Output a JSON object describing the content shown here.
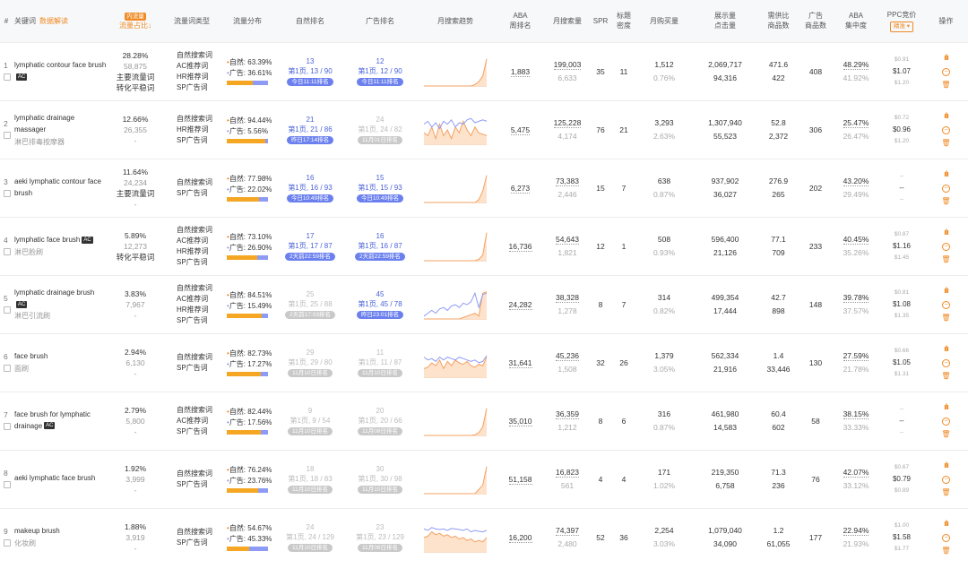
{
  "headers": {
    "idx": "#",
    "keyword": "关键词",
    "keyword_link": "数据解读",
    "share_badge": "内流量",
    "share": "流量占比↓",
    "type": "流量词类型",
    "flow": "流量分布",
    "natural_rank": "自然排名",
    "ad_rank": "广告排名",
    "trend": "月搜索趋势",
    "aba": [
      "ABA",
      "周排名"
    ],
    "monthly_search": "月搜索量",
    "spr": "SPR",
    "title_density": [
      "标题",
      "密度"
    ],
    "monthly_purchase": "月购买量",
    "impressions": [
      "展示量",
      "点击量"
    ],
    "supply_demand": [
      "需供比",
      "商品数"
    ],
    "ad_products": [
      "广告",
      "商品数"
    ],
    "aba_concentration": [
      "ABA",
      "集中度"
    ],
    "ppc": "PPC竞价",
    "ppc_select": "精准 ▾",
    "ops": "操作"
  },
  "rows": [
    {
      "idx": "1",
      "keyword": "lymphatic contour face brush",
      "ac": "AC",
      "sub": "",
      "share": "28.28%",
      "share_count": "58,875",
      "tags": [
        "主要流量词",
        "转化平稳词"
      ],
      "types": [
        "自然搜索词",
        "AC推荐词",
        "HR推荐词",
        "SP广告词"
      ],
      "nat_pct": "63.39%",
      "ad_pct": "36.61%",
      "nat_frac": 0.634,
      "nrank": {
        "style": "blue",
        "n": "13",
        "p": "第1页, 13 / 90",
        "pill": "今日11:11排名"
      },
      "arank": {
        "style": "blue",
        "n": "12",
        "p": "第1页, 12 / 90",
        "pill": "今日11:11排名"
      },
      "trend": {
        "type": "single",
        "a": [
          0,
          0,
          0,
          0,
          0,
          0,
          0,
          0,
          0,
          0,
          0,
          0,
          0,
          0.05,
          0.15,
          0.35,
          0.95
        ],
        "b": []
      },
      "aba": "1,883",
      "search": "199,003",
      "search_sub": "6,633",
      "spr": "35",
      "density": "11",
      "purchase": "1,512",
      "purchase_rate": "0.76%",
      "impressions": "2,069,717",
      "clicks": "94,316",
      "ratio": "471.6",
      "products": "422",
      "ad_products": "408",
      "aba_conc": "48.29%",
      "aba_conc_sub": "41.92%",
      "ppc_low": "$0.91",
      "ppc": "$1.07",
      "ppc_high": "$1.20"
    },
    {
      "idx": "2",
      "keyword": "lymphatic drainage massager",
      "ac": "",
      "sub": "淋巴排毒按摩器",
      "share": "12.66%",
      "share_count": "26,355",
      "tags": [
        "-"
      ],
      "types": [
        "自然搜索词",
        "HR推荐词",
        "SP广告词"
      ],
      "nat_pct": "94.44%",
      "ad_pct": "5.56%",
      "nat_frac": 0.944,
      "nrank": {
        "style": "blue",
        "n": "21",
        "p": "第1页, 21 / 86",
        "pill": "昨日17:14排名"
      },
      "arank": {
        "style": "grey",
        "n": "24",
        "p": "第1页, 24 / 82",
        "pill": "11月01日排名"
      },
      "trend": {
        "type": "double",
        "a": [
          0.4,
          0.3,
          0.6,
          0.2,
          0.7,
          0.3,
          0.5,
          0.2,
          0.6,
          0.4,
          0.8,
          0.5,
          0.3,
          0.6,
          0.4,
          0.35,
          0.3
        ],
        "b": [
          0.7,
          0.8,
          0.6,
          0.75,
          0.55,
          0.8,
          0.7,
          0.85,
          0.6,
          0.75,
          0.7,
          0.85,
          0.9,
          0.75,
          0.8,
          0.85,
          0.8
        ]
      },
      "aba": "5,475",
      "search": "125,228",
      "search_sub": "4,174",
      "spr": "76",
      "density": "21",
      "purchase": "3,293",
      "purchase_rate": "2.63%",
      "impressions": "1,307,940",
      "clicks": "55,523",
      "ratio": "52.8",
      "products": "2,372",
      "ad_products": "306",
      "aba_conc": "25.47%",
      "aba_conc_sub": "26.47%",
      "ppc_low": "$0.72",
      "ppc": "$0.96",
      "ppc_high": "$1.20"
    },
    {
      "idx": "3",
      "keyword": "aeki lymphatic contour face brush",
      "ac": "",
      "sub": "",
      "share": "11.64%",
      "share_count": "24,234",
      "tags": [
        "主要流量词",
        "-"
      ],
      "types": [
        "自然搜索词",
        "SP广告词"
      ],
      "nat_pct": "77.98%",
      "ad_pct": "22.02%",
      "nat_frac": 0.78,
      "nrank": {
        "style": "blue",
        "n": "16",
        "p": "第1页, 16 / 93",
        "pill": "今日10:49排名"
      },
      "arank": {
        "style": "blue",
        "n": "15",
        "p": "第1页, 15 / 93",
        "pill": "今日10:49排名"
      },
      "trend": {
        "type": "single",
        "a": [
          0,
          0,
          0,
          0,
          0,
          0,
          0,
          0,
          0,
          0,
          0,
          0,
          0,
          0,
          0.1,
          0.4,
          0.95
        ],
        "b": []
      },
      "aba": "6,273",
      "search": "73,383",
      "search_sub": "2,446",
      "spr": "15",
      "density": "7",
      "purchase": "638",
      "purchase_rate": "0.87%",
      "impressions": "937,902",
      "clicks": "36,027",
      "ratio": "276.9",
      "products": "265",
      "ad_products": "202",
      "aba_conc": "43.20%",
      "aba_conc_sub": "29.49%",
      "ppc_low": "--",
      "ppc": "--",
      "ppc_high": "--"
    },
    {
      "idx": "4",
      "keyword": "lymphatic face brush",
      "ac": "AC",
      "sub": "淋巴脸刷",
      "share": "5.89%",
      "share_count": "12,273",
      "tags": [
        "转化平稳词"
      ],
      "types": [
        "自然搜索词",
        "AC推荐词",
        "HR推荐词",
        "SP广告词"
      ],
      "nat_pct": "73.10%",
      "ad_pct": "26.90%",
      "nat_frac": 0.731,
      "nrank": {
        "style": "blue",
        "n": "17",
        "p": "第1页, 17 / 87",
        "pill": "2天前22:59排名"
      },
      "arank": {
        "style": "blue",
        "n": "16",
        "p": "第1页, 16 / 87",
        "pill": "2天前22:59排名"
      },
      "trend": {
        "type": "single",
        "a": [
          0,
          0,
          0,
          0,
          0,
          0,
          0,
          0,
          0,
          0,
          0,
          0,
          0,
          0,
          0.05,
          0.2,
          0.98
        ],
        "b": []
      },
      "aba": "16,736",
      "search": "54,643",
      "search_sub": "1,821",
      "spr": "12",
      "density": "1",
      "purchase": "508",
      "purchase_rate": "0.93%",
      "impressions": "596,400",
      "clicks": "21,126",
      "ratio": "77.1",
      "products": "709",
      "ad_products": "233",
      "aba_conc": "40.45%",
      "aba_conc_sub": "35.26%",
      "ppc_low": "$0.87",
      "ppc": "$1.16",
      "ppc_high": "$1.45"
    },
    {
      "idx": "5",
      "keyword": "lymphatic drainage brush",
      "ac": "AC",
      "sub": "淋巴引流刷",
      "share": "3.83%",
      "share_count": "7,967",
      "tags": [
        "-"
      ],
      "types": [
        "自然搜索词",
        "AC推荐词",
        "HR推荐词",
        "SP广告词"
      ],
      "nat_pct": "84.51%",
      "ad_pct": "15.49%",
      "nat_frac": 0.845,
      "nrank": {
        "style": "grey",
        "n": "25",
        "p": "第1页, 25 / 88",
        "pill": "2天前17:03排名"
      },
      "arank": {
        "style": "blue",
        "n": "45",
        "p": "第1页, 45 / 78",
        "pill": "昨日23:01排名"
      },
      "trend": {
        "type": "double",
        "a": [
          0,
          0,
          0,
          0,
          0,
          0,
          0,
          0,
          0,
          0,
          0.05,
          0.1,
          0.15,
          0.2,
          0.1,
          0.9,
          0.95
        ],
        "b": [
          0.1,
          0.2,
          0.3,
          0.2,
          0.35,
          0.4,
          0.3,
          0.45,
          0.5,
          0.4,
          0.55,
          0.5,
          0.6,
          0.9,
          0.4,
          0.85,
          0.9
        ]
      },
      "aba": "24,282",
      "search": "38,328",
      "search_sub": "1,278",
      "spr": "8",
      "density": "7",
      "purchase": "314",
      "purchase_rate": "0.82%",
      "impressions": "499,354",
      "clicks": "17,444",
      "ratio": "42.7",
      "products": "898",
      "ad_products": "148",
      "aba_conc": "39.78%",
      "aba_conc_sub": "37.57%",
      "ppc_low": "$0.81",
      "ppc": "$1.08",
      "ppc_high": "$1.35"
    },
    {
      "idx": "6",
      "keyword": "face brush",
      "ac": "",
      "sub": "面刷",
      "share": "2.94%",
      "share_count": "6,130",
      "tags": [
        "-"
      ],
      "types": [
        "自然搜索词",
        "SP广告词"
      ],
      "nat_pct": "82.73%",
      "ad_pct": "17.27%",
      "nat_frac": 0.827,
      "nrank": {
        "style": "grey",
        "n": "29",
        "p": "第1页, 29 / 80",
        "pill": "11月10日排名"
      },
      "arank": {
        "style": "grey",
        "n": "11",
        "p": "第1页, 11 / 87",
        "pill": "11月10日排名"
      },
      "trend": {
        "type": "double",
        "a": [
          0.3,
          0.35,
          0.5,
          0.4,
          0.6,
          0.3,
          0.55,
          0.4,
          0.6,
          0.5,
          0.45,
          0.55,
          0.4,
          0.35,
          0.45,
          0.4,
          0.7
        ],
        "b": [
          0.7,
          0.6,
          0.65,
          0.55,
          0.7,
          0.6,
          0.7,
          0.65,
          0.6,
          0.7,
          0.65,
          0.6,
          0.55,
          0.6,
          0.5,
          0.55,
          0.75
        ]
      },
      "aba": "31,641",
      "search": "45,236",
      "search_sub": "1,508",
      "spr": "32",
      "density": "26",
      "purchase": "1,379",
      "purchase_rate": "3.05%",
      "impressions": "562,334",
      "clicks": "21,916",
      "ratio": "1.4",
      "products": "33,446",
      "ad_products": "130",
      "aba_conc": "27.59%",
      "aba_conc_sub": "21.78%",
      "ppc_low": "$0.66",
      "ppc": "$1.05",
      "ppc_high": "$1.31"
    },
    {
      "idx": "7",
      "keyword": "face brush for lymphatic drainage",
      "ac": "AC",
      "sub": "",
      "share": "2.79%",
      "share_count": "5,800",
      "tags": [
        "-"
      ],
      "types": [
        "自然搜索词",
        "AC推荐词",
        "SP广告词"
      ],
      "nat_pct": "82.44%",
      "ad_pct": "17.56%",
      "nat_frac": 0.824,
      "nrank": {
        "style": "grey",
        "n": "9",
        "p": "第1页, 9 / 54",
        "pill": "11月10日排名"
      },
      "arank": {
        "style": "grey",
        "n": "20",
        "p": "第1页, 20 / 66",
        "pill": "11月08日排名"
      },
      "trend": {
        "type": "single",
        "a": [
          0,
          0,
          0,
          0,
          0,
          0,
          0,
          0,
          0,
          0,
          0,
          0,
          0,
          0.02,
          0.1,
          0.3,
          0.95
        ],
        "b": []
      },
      "aba": "35,010",
      "search": "36,359",
      "search_sub": "1,212",
      "spr": "8",
      "density": "6",
      "purchase": "316",
      "purchase_rate": "0.87%",
      "impressions": "461,980",
      "clicks": "14,583",
      "ratio": "60.4",
      "products": "602",
      "ad_products": "58",
      "aba_conc": "38.15%",
      "aba_conc_sub": "33.33%",
      "ppc_low": "--",
      "ppc": "--",
      "ppc_high": "--"
    },
    {
      "idx": "8",
      "keyword": "aeki lymphatic face brush",
      "ac": "",
      "sub": "",
      "share": "1.92%",
      "share_count": "3,999",
      "tags": [
        "-"
      ],
      "types": [
        "自然搜索词",
        "SP广告词"
      ],
      "nat_pct": "76.24%",
      "ad_pct": "23.76%",
      "nat_frac": 0.762,
      "nrank": {
        "style": "grey",
        "n": "18",
        "p": "第1页, 18 / 83",
        "pill": "11月10日排名"
      },
      "arank": {
        "style": "grey",
        "n": "30",
        "p": "第1页, 30 / 98",
        "pill": "11月10日排名"
      },
      "trend": {
        "type": "single",
        "a": [
          0,
          0,
          0,
          0,
          0,
          0,
          0,
          0,
          0,
          0,
          0,
          0,
          0,
          0,
          0.15,
          0.3,
          0.95
        ],
        "b": []
      },
      "aba": "51,158",
      "search": "16,823",
      "search_sub": "561",
      "spr": "4",
      "density": "4",
      "purchase": "171",
      "purchase_rate": "1.02%",
      "impressions": "219,350",
      "clicks": "6,758",
      "ratio": "71.3",
      "products": "236",
      "ad_products": "76",
      "aba_conc": "42.07%",
      "aba_conc_sub": "33.12%",
      "ppc_low": "$0.67",
      "ppc": "$0.79",
      "ppc_high": "$0.89"
    },
    {
      "idx": "9",
      "keyword": "makeup brush",
      "ac": "",
      "sub": "化妆刷",
      "share": "1.88%",
      "share_count": "3,919",
      "tags": [
        "-"
      ],
      "types": [
        "自然搜索词",
        "SP广告词"
      ],
      "nat_pct": "54.67%",
      "ad_pct": "45.33%",
      "nat_frac": 0.547,
      "nrank": {
        "style": "grey",
        "n": "24",
        "p": "第1页, 24 / 129",
        "pill": "11月10日排名"
      },
      "arank": {
        "style": "grey",
        "n": "23",
        "p": "第1页, 23 / 129",
        "pill": "11月08日排名"
      },
      "trend": {
        "type": "double",
        "a": [
          0.5,
          0.55,
          0.7,
          0.6,
          0.65,
          0.55,
          0.6,
          0.5,
          0.55,
          0.45,
          0.5,
          0.4,
          0.45,
          0.35,
          0.4,
          0.35,
          0.5
        ],
        "b": [
          0.8,
          0.75,
          0.85,
          0.8,
          0.78,
          0.8,
          0.75,
          0.82,
          0.8,
          0.78,
          0.75,
          0.8,
          0.7,
          0.75,
          0.72,
          0.7,
          0.75
        ]
      },
      "aba": "16,200",
      "search": "74,397",
      "search_sub": "2,480",
      "spr": "52",
      "density": "36",
      "purchase": "2,254",
      "purchase_rate": "3.03%",
      "impressions": "1,079,040",
      "clicks": "34,090",
      "ratio": "1.2",
      "products": "61,055",
      "ad_products": "177",
      "aba_conc": "22.94%",
      "aba_conc_sub": "21.93%",
      "ppc_low": "$1.00",
      "ppc": "$1.58",
      "ppc_high": "$1.77"
    }
  ],
  "colors": {
    "accent": "#f08a24",
    "blue": "#4a62d8",
    "bar_natural": "#f5a623",
    "bar_ad": "#8e9bf5",
    "trend_line": "#f5a060",
    "trend_fill": "#fde3cc",
    "trend_line2": "#8e9bf5"
  },
  "icons": {
    "chart": "bar-chart-icon",
    "circle": "minus-circle-icon",
    "trash": "trash-icon"
  }
}
